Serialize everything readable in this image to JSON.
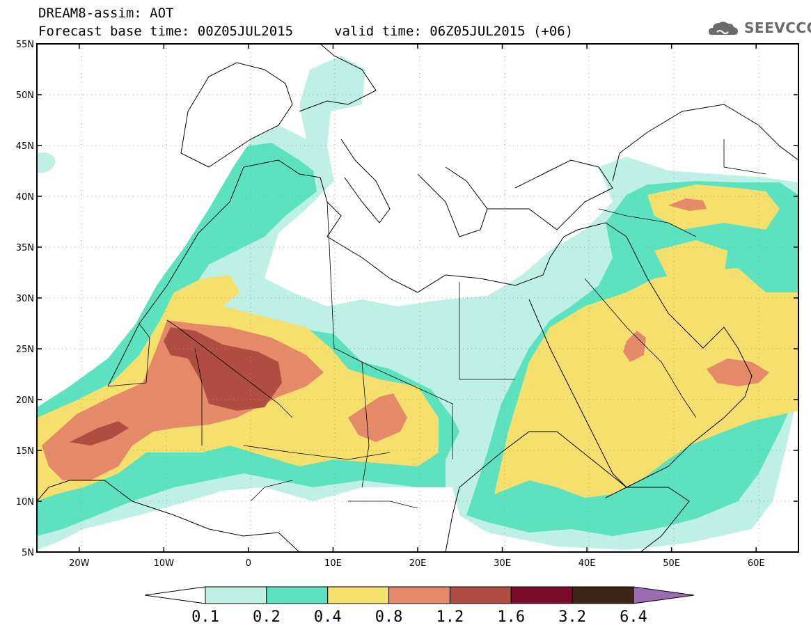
{
  "header": {
    "title": "DREAM8-assim: AOT",
    "base_time": "Forecast base time: 00Z05JUL2015",
    "valid_time": "valid time: 06Z05JUL2015 (+06)",
    "logo_text": "SEEVCCC",
    "logo_icon": "cloud-icon"
  },
  "map": {
    "projection": "lat-lon",
    "lon_range": [
      -25,
      65
    ],
    "lat_range": [
      5,
      55
    ],
    "lon_ticks": [
      {
        "value": -20,
        "label": "20W"
      },
      {
        "value": -10,
        "label": "10W"
      },
      {
        "value": 0,
        "label": "0"
      },
      {
        "value": 10,
        "label": "10E"
      },
      {
        "value": 20,
        "label": "20E"
      },
      {
        "value": 30,
        "label": "30E"
      },
      {
        "value": 40,
        "label": "40E"
      },
      {
        "value": 50,
        "label": "50E"
      },
      {
        "value": 60,
        "label": "60E"
      }
    ],
    "lat_ticks": [
      {
        "value": 55,
        "label": "55N"
      },
      {
        "value": 50,
        "label": "50N"
      },
      {
        "value": 45,
        "label": "45N"
      },
      {
        "value": 40,
        "label": "40N"
      },
      {
        "value": 35,
        "label": "35N"
      },
      {
        "value": 30,
        "label": "30N"
      },
      {
        "value": 25,
        "label": "25N"
      },
      {
        "value": 20,
        "label": "20N"
      },
      {
        "value": 15,
        "label": "15N"
      },
      {
        "value": 10,
        "label": "10N"
      },
      {
        "value": 5,
        "label": "5N"
      }
    ],
    "grid": "dotted"
  },
  "colorbar": {
    "labels": [
      "0.1",
      "0.2",
      "0.4",
      "0.8",
      "1.2",
      "1.6",
      "3.2",
      "6.4"
    ],
    "colors": [
      "#ffffff",
      "#bff0e6",
      "#5de2bf",
      "#f5e06d",
      "#e58a68",
      "#ae4d40",
      "#7e0b2c",
      "#3e2616",
      "#9b6cb3"
    ]
  }
}
